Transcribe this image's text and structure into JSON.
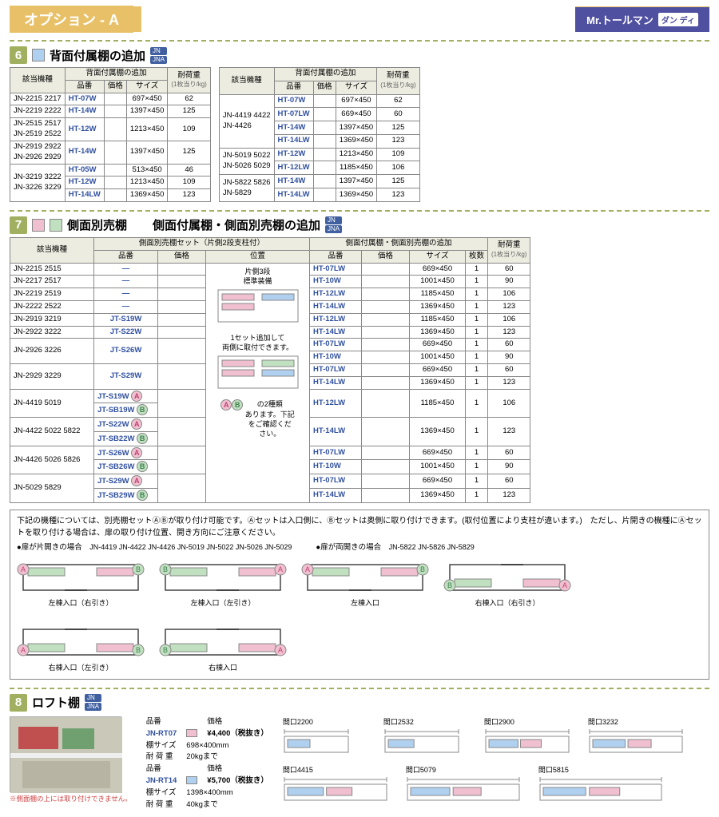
{
  "header": {
    "title": "オプション - A",
    "brand": "Mr.トールマン",
    "brand_sub": "ダン ディ"
  },
  "colors": {
    "header_bg": "#e8c068",
    "brand_bg": "#5050a0",
    "sec_num_bg": "#a0b060",
    "sw_blue": "#b0d0f0",
    "sw_pink": "#f0c0d0",
    "sw_green": "#c0e0c0",
    "table_header_bg": "#ecece0",
    "part_num": "#3050a0",
    "note_red": "#d04040"
  },
  "badges": [
    "JN",
    "JNA"
  ],
  "sec6": {
    "num": "6",
    "title": "背面付属棚の追加",
    "th": {
      "model": "該当機種",
      "group": "背面付属棚の追加",
      "pn": "品番",
      "price": "価格",
      "size": "サイズ",
      "load": "耐荷重",
      "load_sub": "(1枚当り/kg)"
    },
    "left_rows": [
      {
        "models": [
          "JN-2215 2217"
        ],
        "pn": "HT-07W",
        "size": "697×450",
        "load": "62"
      },
      {
        "models": [
          "JN-2219 2222"
        ],
        "pn": "HT-14W",
        "size": "1397×450",
        "load": "125"
      },
      {
        "models": [
          "JN-2515 2517",
          "JN-2519 2522"
        ],
        "pn": "HT-12W",
        "size": "1213×450",
        "load": "109"
      },
      {
        "models": [
          "JN-2919 2922",
          "JN-2926 2929"
        ],
        "pn": "HT-14W",
        "size": "1397×450",
        "load": "125"
      },
      {
        "models": [
          "JN-3219 3222",
          "JN-3226 3229"
        ],
        "pns": [
          "HT-05W",
          "HT-12W",
          "HT-14LW"
        ],
        "sizes": [
          "513×450",
          "1213×450",
          "1369×450"
        ],
        "loads": [
          "46",
          "109",
          "123"
        ]
      }
    ],
    "right_rows": [
      {
        "models": [
          "JN-4419 4422",
          "JN-4426"
        ],
        "pns": [
          "HT-07W",
          "HT-07LW",
          "HT-14W",
          "HT-14LW"
        ],
        "sizes": [
          "697×450",
          "669×450",
          "1397×450",
          "1369×450"
        ],
        "loads": [
          "62",
          "60",
          "125",
          "123"
        ]
      },
      {
        "models": [
          "JN-5019 5022",
          "JN-5026 5029"
        ],
        "pns": [
          "HT-12W",
          "HT-12LW"
        ],
        "sizes": [
          "1213×450",
          "1185×450"
        ],
        "loads": [
          "109",
          "106"
        ]
      },
      {
        "models": [
          "JN-5822 5826",
          "JN-5829"
        ],
        "pns": [
          "HT-14W",
          "HT-14LW"
        ],
        "sizes": [
          "1397×450",
          "1369×450"
        ],
        "loads": [
          "125",
          "123"
        ]
      }
    ]
  },
  "sec7": {
    "num": "7",
    "title1": "側面別売棚",
    "title2": "側面付属棚・側面別売棚の追加",
    "th": {
      "model": "該当機種",
      "set": "側面別売棚セット（片側2段支柱付）",
      "add": "側面付属棚・側面別売棚の追加",
      "pn": "品番",
      "price": "価格",
      "pos": "位置",
      "size": "サイズ",
      "qty": "枚数",
      "load": "耐荷重",
      "load_sub": "(1枚当り/kg)"
    },
    "diag_text1": "片側3段\n標準装備",
    "diag_text2": "1セット追加して\n両側に取付できます。",
    "diag_text3": "の2種類\nあります。下記\nをご確認くだ\nさい。",
    "rows": [
      {
        "model": "JN-2215 2515",
        "set_pn": "—",
        "add_pn": "HT-07LW",
        "size": "669×450",
        "qty": "1",
        "load": "60"
      },
      {
        "model": "JN-2217 2517",
        "set_pn": "—",
        "add_pn": "HT-10W",
        "size": "1001×450",
        "qty": "1",
        "load": "90"
      },
      {
        "model": "JN-2219 2519",
        "set_pn": "—",
        "add_pn": "HT-12LW",
        "size": "1185×450",
        "qty": "1",
        "load": "106"
      },
      {
        "model": "JN-2222 2522",
        "set_pn": "—",
        "add_pn": "HT-14LW",
        "size": "1369×450",
        "qty": "1",
        "load": "123"
      },
      {
        "model": "JN-2919 3219",
        "set_pn": "JT-S19W",
        "add_pn": "HT-12LW",
        "size": "1185×450",
        "qty": "1",
        "load": "106"
      },
      {
        "model": "JN-2922 3222",
        "set_pn": "JT-S22W",
        "add_pn": "HT-14LW",
        "size": "1369×450",
        "qty": "1",
        "load": "123"
      },
      {
        "model": "JN-2926 3226",
        "set_pn": "JT-S26W",
        "add_pns": [
          "HT-07LW",
          "HT-10W"
        ],
        "sizes": [
          "669×450",
          "1001×450"
        ],
        "qtys": [
          "1",
          "1"
        ],
        "loads": [
          "60",
          "90"
        ]
      },
      {
        "model": "JN-2929 3229",
        "set_pn": "JT-S29W",
        "add_pns": [
          "HT-07LW",
          "HT-14LW"
        ],
        "sizes": [
          "669×450",
          "1369×450"
        ],
        "qtys": [
          "1",
          "1"
        ],
        "loads": [
          "60",
          "123"
        ]
      },
      {
        "model": "JN-4419 5019",
        "set_pns": [
          "JT-S19W",
          "JT-SB19W"
        ],
        "marks": [
          "A",
          "B"
        ],
        "add_pn": "HT-12LW",
        "size": "1185×450",
        "qty": "1",
        "load": "106"
      },
      {
        "model": "JN-4422 5022 5822",
        "set_pns": [
          "JT-S22W",
          "JT-SB22W"
        ],
        "marks": [
          "A",
          "B"
        ],
        "add_pn": "HT-14LW",
        "size": "1369×450",
        "qty": "1",
        "load": "123"
      },
      {
        "model": "JN-4426 5026 5826",
        "set_pns": [
          "JT-S26W",
          "JT-SB26W"
        ],
        "marks": [
          "A",
          "B"
        ],
        "add_pns": [
          "HT-07LW",
          "HT-10W"
        ],
        "sizes": [
          "669×450",
          "1001×450"
        ],
        "qtys": [
          "1",
          "1"
        ],
        "loads": [
          "60",
          "90"
        ]
      },
      {
        "model": "JN-5029 5829",
        "set_pns": [
          "JT-S29W",
          "JT-SB29W"
        ],
        "marks": [
          "A",
          "B"
        ],
        "add_pns": [
          "HT-07LW",
          "HT-14LW"
        ],
        "sizes": [
          "669×450",
          "1369×450"
        ],
        "qtys": [
          "1",
          "1"
        ],
        "loads": [
          "60",
          "123"
        ]
      }
    ],
    "note": "下記の機種については、別売棚セットⒶⒷが取り付け可能です。Ⓐセットは入口側に、Ⓑセットは奥側に取り付けできます。(取付位置により支柱が違います。)　ただし、片開きの機種にⒶセットを取り付ける場合は、扉の取り付け位置、開き方向にご注意ください。",
    "case1": "●扉が片開きの場合",
    "case1_models": "JN-4419 JN-4422 JN-4426 JN-5019 JN-5022 JN-5026 JN-5029",
    "case2": "●扉が両開きの場合",
    "case2_models": "JN-5822 JN-5826 JN-5829",
    "dia_labels": [
      "左棟入口（右引き）",
      "左棟入口（左引き）",
      "左棟入口",
      "右棟入口（右引き）",
      "右棟入口（左引き）",
      "右棟入口"
    ]
  },
  "sec8": {
    "num": "8",
    "title": "ロフト棚",
    "photo_note": "※側面棚の上には取り付けできません。",
    "th": {
      "pn": "品番",
      "price": "価格",
      "size": "棚サイズ",
      "load": "耐 荷 重"
    },
    "items": [
      {
        "pn": "JN-RT07",
        "sw": "#f0c0d0",
        "price": "¥4,400（税抜き）",
        "size": "698×400mm",
        "load": "20kgまで"
      },
      {
        "pn": "JN-RT14",
        "sw": "#b0d0f0",
        "price": "¥5,700（税抜き）",
        "size": "1398×400mm",
        "load": "40kgまで"
      }
    ],
    "widths": [
      "間口2200",
      "間口2532",
      "間口2900",
      "間口3232",
      "間口4415",
      "間口5079",
      "間口5815"
    ]
  }
}
